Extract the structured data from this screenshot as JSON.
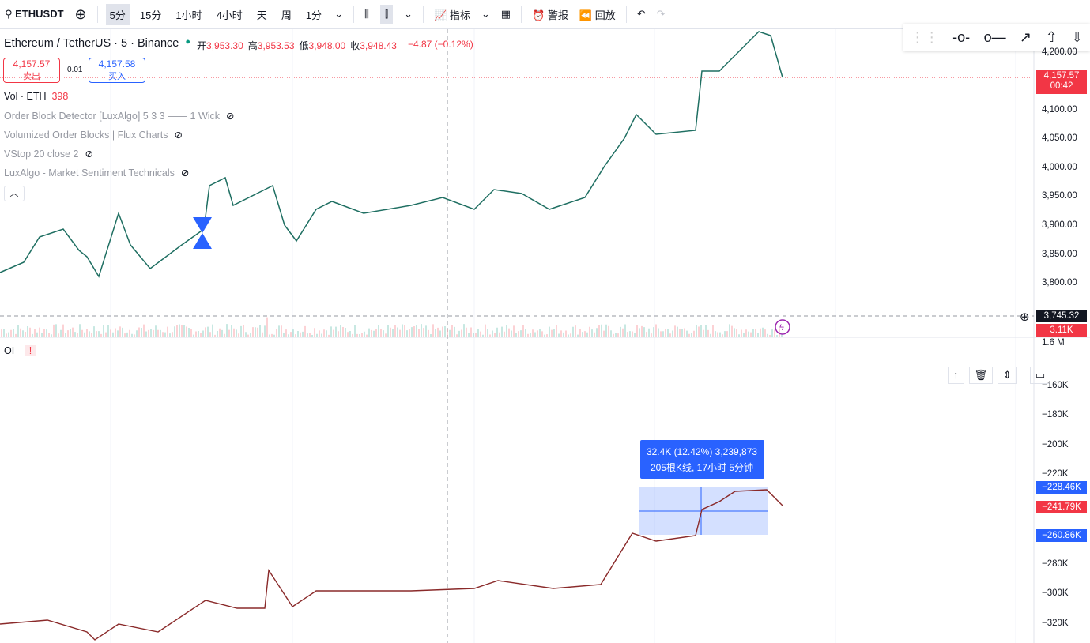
{
  "toolbar": {
    "symbol": "ETHUSDT",
    "intervals": [
      "5分",
      "15分",
      "1小时",
      "4小时",
      "天",
      "周",
      "1分"
    ],
    "indicators": "指标",
    "alert": "警报",
    "replay": "回放"
  },
  "legend": {
    "title": "Ethereum / TetherUS · 5 · Binance",
    "ohlc": [
      {
        "label": "开",
        "value": "3,953.30"
      },
      {
        "label": "高",
        "value": "3,953.53"
      },
      {
        "label": "低",
        "value": "3,948.00"
      },
      {
        "label": "收",
        "value": "3,948.43"
      }
    ],
    "change": "−4.87 (−0.12%)",
    "sell": {
      "price": "4,157.57",
      "label": "卖出"
    },
    "spread": "0.01",
    "buy": {
      "price": "4,157.58",
      "label": "买入"
    },
    "volume": {
      "name": "Vol · ETH",
      "value": "398"
    },
    "indicators": [
      "Order Block Detector [LuxAlgo] 5 3 3 —— 1 Wick",
      "Volumized Order Blocks | Flux Charts",
      "VStop 20 close 2",
      "LuxAlgo - Market Sentiment Technicals"
    ]
  },
  "price_axis": {
    "labels": [
      "4,200.00",
      "4,100.00",
      "4,050.00",
      "4,000.00",
      "3,950.00",
      "3,900.00",
      "3,850.00",
      "3,800.00"
    ],
    "last_price": "4,157.57",
    "countdown": "00:42",
    "crosshair": "3,745.32",
    "volume": "3.11K",
    "volume_scale": "1.6 M"
  },
  "oi_pane": {
    "label": "OI",
    "axis": [
      "−160K",
      "−180K",
      "−200K",
      "−220K",
      "−280K",
      "−300K",
      "−320K"
    ],
    "badges": [
      "−228.46K",
      "−241.79K",
      "−260.86K"
    ],
    "measure": [
      "32.4K (12.42%) 3,239,873",
      "205根K线, 17小时 5分钟"
    ]
  }
}
